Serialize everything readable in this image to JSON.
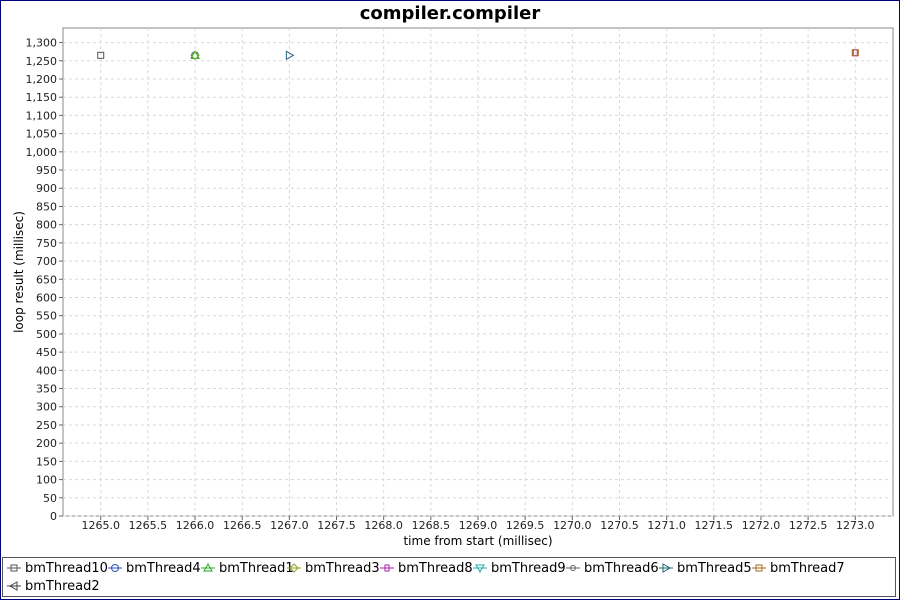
{
  "chart_data": {
    "type": "scatter",
    "title": "compiler.compiler",
    "xlabel": "time from start (millisec)",
    "ylabel": "loop result (millisec)",
    "xlim": [
      1264.6,
      1273.4
    ],
    "ylim": [
      0,
      1340
    ],
    "x_ticks": [
      1265.0,
      1265.5,
      1266.0,
      1266.5,
      1267.0,
      1267.5,
      1268.0,
      1268.5,
      1269.0,
      1269.5,
      1270.0,
      1270.5,
      1271.0,
      1271.5,
      1272.0,
      1272.5,
      1273.0
    ],
    "x_tick_labels": [
      "1265.0",
      "1265.5",
      "1266.0",
      "1266.5",
      "1267.0",
      "1267.5",
      "1268.0",
      "1268.5",
      "1269.0",
      "1269.5",
      "1270.0",
      "1270.5",
      "1271.0",
      "1271.5",
      "1272.0",
      "1272.5",
      "1273.0"
    ],
    "y_ticks": [
      0,
      50,
      100,
      150,
      200,
      250,
      300,
      350,
      400,
      450,
      500,
      550,
      600,
      650,
      700,
      750,
      800,
      850,
      900,
      950,
      1000,
      1050,
      1100,
      1150,
      1200,
      1250,
      1300
    ],
    "y_tick_labels": [
      "0",
      "50",
      "100",
      "150",
      "200",
      "250",
      "300",
      "350",
      "400",
      "450",
      "500",
      "550",
      "600",
      "650",
      "700",
      "750",
      "800",
      "850",
      "900",
      "950",
      "1,000",
      "1,050",
      "1,100",
      "1,150",
      "1,200",
      "1,250",
      "1,300"
    ],
    "grid": true,
    "legend_position": "bottom",
    "series": [
      {
        "name": "bmThread10",
        "marker": "square",
        "color": "#555555",
        "points": [
          [
            1265.0,
            1265
          ]
        ]
      },
      {
        "name": "bmThread4",
        "marker": "circle",
        "color": "#2255bb",
        "points": [
          [
            1266.0,
            1265
          ]
        ]
      },
      {
        "name": "bmThread1",
        "marker": "triangle-up",
        "color": "#22aa22",
        "points": [
          [
            1266.0,
            1265
          ]
        ]
      },
      {
        "name": "bmThread3",
        "marker": "diamond",
        "color": "#88aa22",
        "points": [
          [
            1266.0,
            1265
          ]
        ]
      },
      {
        "name": "bmThread8",
        "marker": "square-tall",
        "color": "#aa22aa",
        "points": [
          [
            1273.0,
            1272
          ]
        ]
      },
      {
        "name": "bmThread9",
        "marker": "triangle-down",
        "color": "#22aaaa",
        "points": []
      },
      {
        "name": "bmThread6",
        "marker": "circle-small",
        "color": "#666666",
        "points": []
      },
      {
        "name": "bmThread5",
        "marker": "triangle-right",
        "color": "#226677",
        "points": [
          [
            1267.0,
            1265
          ]
        ]
      },
      {
        "name": "bmThread7",
        "marker": "square",
        "color": "#aa6622",
        "points": [
          [
            1273.0,
            1272
          ]
        ]
      },
      {
        "name": "bmThread2",
        "marker": "triangle-left",
        "color": "#444444",
        "points": []
      }
    ]
  }
}
